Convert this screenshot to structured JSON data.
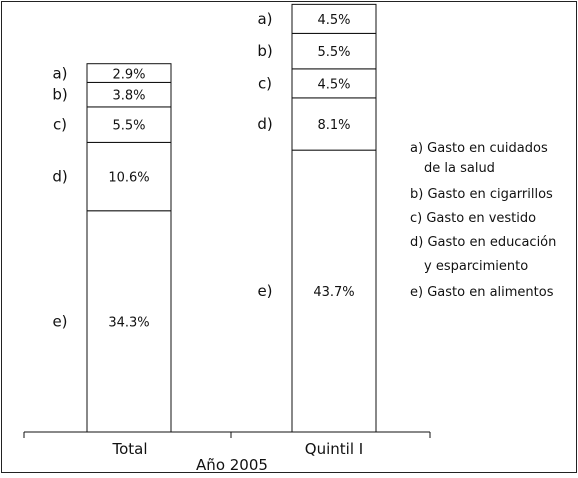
{
  "chart_data": {
    "type": "bar",
    "stacked": true,
    "xlabel": "Año 2005",
    "categories": [
      "Total",
      "Quintil I"
    ],
    "series": [
      {
        "key": "e",
        "values": [
          34.3,
          43.7
        ]
      },
      {
        "key": "d",
        "values": [
          10.6,
          8.1
        ]
      },
      {
        "key": "c",
        "values": [
          5.5,
          4.5
        ]
      },
      {
        "key": "b",
        "values": [
          3.8,
          5.5
        ]
      },
      {
        "key": "a",
        "values": [
          2.9,
          4.5
        ]
      }
    ],
    "segment_labels": [
      [
        "34.3%",
        "10.6%",
        "5.5%",
        "3.8%",
        "2.9%"
      ],
      [
        "43.7%",
        "8.1%",
        "4.5%",
        "5.5%",
        "4.5%"
      ]
    ],
    "segment_letters": [
      "e)",
      "d)",
      "c)",
      "b)",
      "a)"
    ],
    "legend": [
      "a) Gasto en cuidados",
      "de la salud",
      "b) Gasto en cigarrillos",
      "c) Gasto en vestido",
      "d) Gasto en educación",
      "y esparcimiento",
      "e) Gasto en alimentos"
    ],
    "legend_placement": "right",
    "grid": false
  }
}
